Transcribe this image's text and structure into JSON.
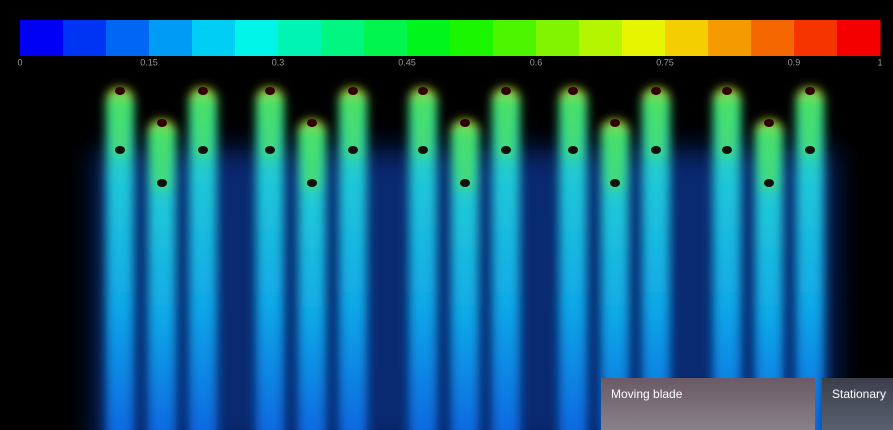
{
  "colorbar": {
    "lim": [
      0,
      1
    ],
    "ticks": [
      0,
      0.15,
      0.3,
      0.45,
      0.6,
      0.75,
      0.9,
      1
    ]
  },
  "insets": [
    {
      "label": "Moving blade"
    },
    {
      "label": "Stationary"
    }
  ]
}
